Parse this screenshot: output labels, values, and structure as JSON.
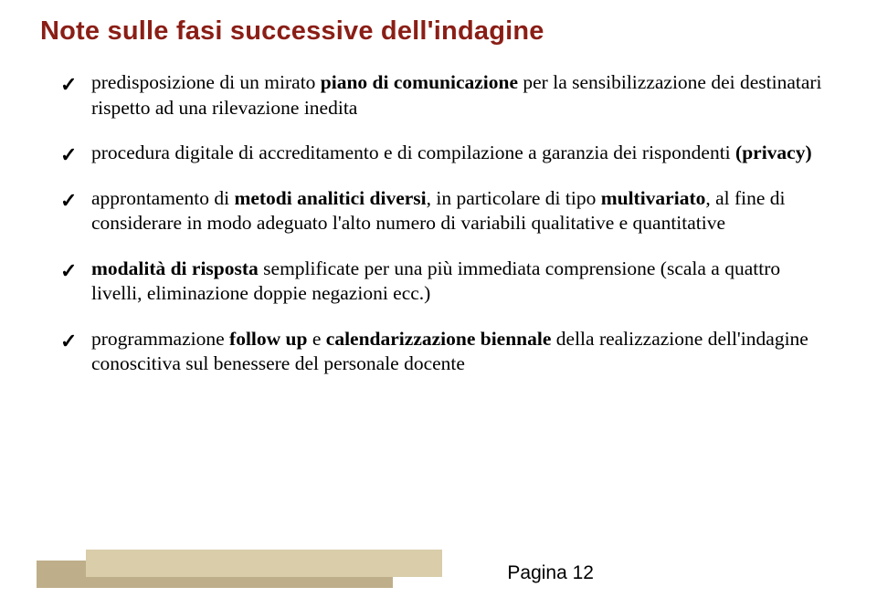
{
  "title": "Note sulle fasi successive dell'indagine",
  "items": [
    {
      "pre": "predisposizione di un mirato ",
      "bold1": "piano di comunicazione",
      "mid": " per la sensibilizzazione dei destinatari rispetto ad una rilevazione inedita"
    },
    {
      "pre": "procedura digitale di accreditamento e di compilazione a garanzia dei rispondenti ",
      "bold1": "(privacy)"
    },
    {
      "pre": "approntamento di ",
      "bold1": "metodi analitici diversi",
      "mid": ", in particolare di tipo ",
      "bold2": "multivariato",
      "post": ", al fine di considerare in modo adeguato l'alto numero di variabili qualitative e quantitative"
    },
    {
      "bold1": "modalità di risposta",
      "mid": " semplificate per una più immediata comprensione (scala a quattro livelli, eliminazione doppie negazioni ecc.)"
    },
    {
      "pre": "programmazione ",
      "bold1": "follow up",
      "mid": " e ",
      "bold2": "calendarizzazione biennale",
      "post": " della realizzazione dell'indagine conoscitiva sul benessere del personale docente"
    }
  ],
  "page": "Pagina 12",
  "colors": {
    "title": "#8a1e16",
    "text": "#000000",
    "bar_back": "#bfae8a",
    "bar_front": "#d9cdaa",
    "background": "#ffffff"
  },
  "fonts": {
    "title_family": "Arial",
    "title_size_pt": 22,
    "body_family": "Palatino Linotype",
    "body_size_pt": 16
  }
}
